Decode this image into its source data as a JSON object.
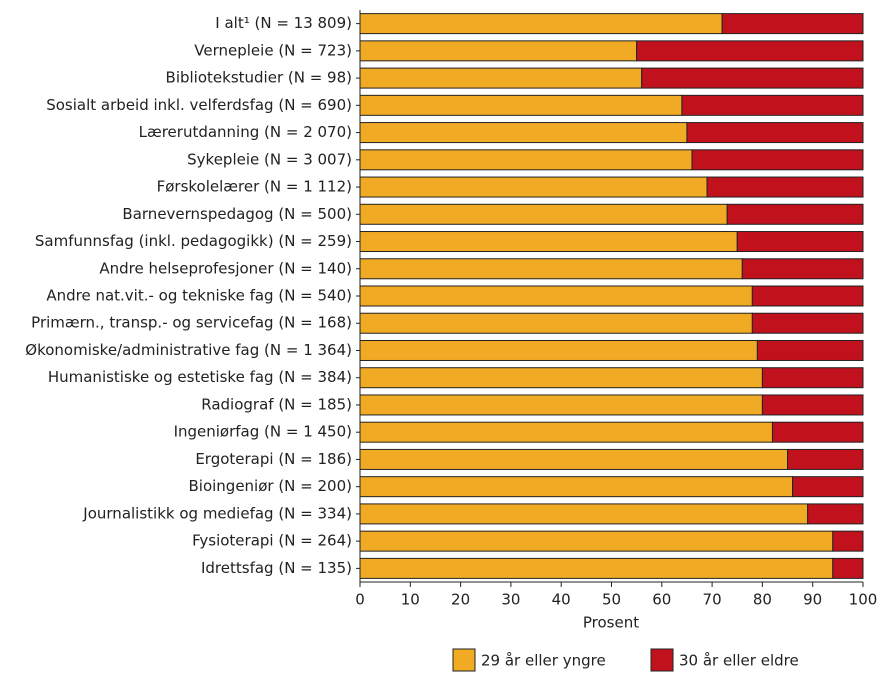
{
  "chart_data": {
    "type": "stacked-barh",
    "categories": [
      "I alt¹ (N = 13 809)",
      "Vernepleie (N = 723)",
      "Bibliotekstudier (N = 98)",
      "Sosialt arbeid inkl. velferdsfag (N = 690)",
      "Lærerutdanning (N = 2 070)",
      "Sykepleie (N = 3 007)",
      "Førskolelærer (N = 1 112)",
      "Barnevernspedagog (N = 500)",
      "Samfunnsfag (inkl. pedagogikk) (N = 259)",
      "Andre helseprofesjoner (N = 140)",
      "Andre nat.vit.- og tekniske fag (N = 540)",
      "Primærn., transp.- og servicefag (N = 168)",
      "Økonomiske/administrative fag (N = 1 364)",
      "Humanistiske og estetiske fag (N = 384)",
      "Radiograf (N = 185)",
      "Ingeniørfag (N = 1 450)",
      "Ergoterapi (N = 186)",
      "Bioingeniør (N = 200)",
      "Journalistikk og mediefag (N = 334)",
      "Fysioterapi (N = 264)",
      "Idrettsfag (N = 135)"
    ],
    "series": [
      {
        "name": "29 år eller yngre",
        "color": "#f0aa24",
        "values": [
          72,
          55,
          56,
          64,
          65,
          66,
          69,
          73,
          75,
          76,
          78,
          78,
          79,
          80,
          80,
          82,
          85,
          86,
          89,
          94,
          94
        ]
      },
      {
        "name": "30 år eller eldre",
        "color": "#c0111d",
        "values": [
          28,
          45,
          44,
          36,
          35,
          34,
          31,
          27,
          25,
          24,
          22,
          22,
          21,
          20,
          20,
          18,
          15,
          14,
          11,
          6,
          6
        ]
      }
    ],
    "xlabel": "Prosent",
    "xlim": [
      0,
      100
    ],
    "xticks": [
      0,
      10,
      20,
      30,
      40,
      50,
      60,
      70,
      80,
      90,
      100
    ]
  }
}
